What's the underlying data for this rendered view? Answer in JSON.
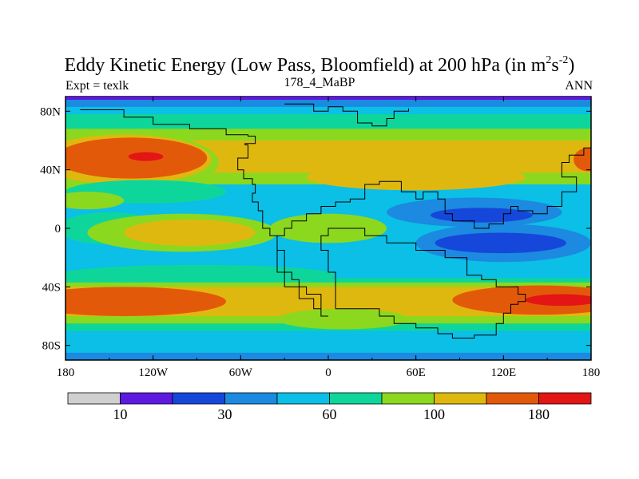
{
  "chart_data": {
    "type": "heatmap",
    "title": {
      "main": "Eddy Kinetic Energy (Low Pass, Bloomfield) at 200 hPa (in m",
      "sup1": "2",
      "mid": "s",
      "sup2": "-2",
      "end": ")"
    },
    "left_string": "Expt = texlk",
    "center_string": "178_4_MaBP",
    "right_string": "ANN",
    "x_range": [
      -180,
      180
    ],
    "y_range": [
      -90,
      90
    ],
    "x_ticks": [
      {
        "value": -180,
        "label": "180"
      },
      {
        "value": -120,
        "label": "120W"
      },
      {
        "value": -60,
        "label": "60W"
      },
      {
        "value": 0,
        "label": "0"
      },
      {
        "value": 60,
        "label": "60E"
      },
      {
        "value": 120,
        "label": "120E"
      },
      {
        "value": 180,
        "label": "180"
      }
    ],
    "y_ticks": [
      {
        "value": 80,
        "label": "80N"
      },
      {
        "value": 40,
        "label": "40N"
      },
      {
        "value": 0,
        "label": "0"
      },
      {
        "value": -40,
        "label": "40S"
      },
      {
        "value": -80,
        "label": "80S"
      }
    ],
    "colorbar": {
      "colors": [
        "#d0d0d0",
        "#5e19e0",
        "#1548da",
        "#1b8ae0",
        "#0bbfe6",
        "#0ed69b",
        "#8bd81f",
        "#dfb80f",
        "#e3590a",
        "#e31515"
      ],
      "labels": [
        {
          "after_box": 1,
          "label": "10"
        },
        {
          "after_box": 3,
          "label": "30"
        },
        {
          "after_box": 5,
          "label": "60"
        },
        {
          "after_box": 7,
          "label": "100"
        },
        {
          "after_box": 9,
          "label": "180"
        }
      ]
    },
    "background_color": "#0bbfe6",
    "field_regions": [
      {
        "type": "band",
        "lat_top": 90,
        "lat_bottom": 83,
        "color": "#1b8ae0"
      },
      {
        "type": "band",
        "lat_top": 78,
        "lat_bottom": 65,
        "color": "#0ed69b"
      },
      {
        "type": "band",
        "lat_top": 68,
        "lat_bottom": 30,
        "color": "#8bd81f"
      },
      {
        "type": "band",
        "lat_top": 60,
        "lat_bottom": 38,
        "color": "#dfb80f"
      },
      {
        "type": "blob",
        "lon": -150,
        "lat": 45,
        "rlon": 75,
        "rlat": 22,
        "color": "#8bd81f"
      },
      {
        "type": "blob",
        "lon": -140,
        "lat": 47,
        "rlon": 60,
        "rlat": 17,
        "color": "#dfb80f"
      },
      {
        "type": "blob",
        "lon": -135,
        "lat": 48,
        "rlon": 52,
        "rlat": 14,
        "color": "#e3590a"
      },
      {
        "type": "blob",
        "lon": -125,
        "lat": 49,
        "rlon": 12,
        "rlat": 3,
        "color": "#e31515"
      },
      {
        "type": "blob",
        "lon": 178,
        "lat": 47,
        "rlon": 10,
        "rlat": 8,
        "color": "#e3590a"
      },
      {
        "type": "blob",
        "lon": -5,
        "lat": 49,
        "rlon": 60,
        "rlat": 9,
        "color": "#dfb80f"
      },
      {
        "type": "blob",
        "lon": -125,
        "lat": 25,
        "rlon": 55,
        "rlat": 8,
        "color": "#0ed69b"
      },
      {
        "type": "blob",
        "lon": 60,
        "lat": 35,
        "rlon": 75,
        "rlat": 9,
        "color": "#dfb80f"
      },
      {
        "type": "blob",
        "lon": -165,
        "lat": 19,
        "rlon": 25,
        "rlat": 6,
        "color": "#8bd81f"
      },
      {
        "type": "blob",
        "lon": 100,
        "lat": 11,
        "rlon": 60,
        "rlat": 10,
        "color": "#1b8ae0"
      },
      {
        "type": "blob",
        "lon": 105,
        "lat": 9,
        "rlon": 35,
        "rlat": 5,
        "color": "#1548da"
      },
      {
        "type": "blob",
        "lon": -150,
        "lat": 0,
        "rlon": 35,
        "rlat": 11,
        "color": "#0ed69b"
      },
      {
        "type": "blob",
        "lon": -100,
        "lat": -3,
        "rlon": 65,
        "rlat": 13,
        "color": "#8bd81f"
      },
      {
        "type": "blob",
        "lon": -95,
        "lat": -3,
        "rlon": 45,
        "rlat": 9,
        "color": "#dfb80f"
      },
      {
        "type": "blob",
        "lon": 0,
        "lat": 0,
        "rlon": 40,
        "rlat": 10,
        "color": "#8bd81f"
      },
      {
        "type": "blob",
        "lon": 120,
        "lat": -10,
        "rlon": 60,
        "rlat": 13,
        "color": "#1b8ae0"
      },
      {
        "type": "blob",
        "lon": 118,
        "lat": -10,
        "rlon": 45,
        "rlat": 7,
        "color": "#1548da"
      },
      {
        "type": "blob",
        "lon": -90,
        "lat": -32,
        "rlon": 95,
        "rlat": 7,
        "color": "#0ed69b"
      },
      {
        "type": "band",
        "lat_top": -34,
        "lat_bottom": -72,
        "color": "#0ed69b"
      },
      {
        "type": "band",
        "lat_top": -37,
        "lat_bottom": -65,
        "color": "#8bd81f"
      },
      {
        "type": "band",
        "lat_top": -40,
        "lat_bottom": -60,
        "color": "#dfb80f"
      },
      {
        "type": "blob",
        "lon": -140,
        "lat": -50,
        "rlon": 70,
        "rlat": 10,
        "color": "#e3590a"
      },
      {
        "type": "blob",
        "lon": 145,
        "lat": -49,
        "rlon": 60,
        "rlat": 10,
        "color": "#e3590a"
      },
      {
        "type": "blob",
        "lon": 160,
        "lat": -49,
        "rlon": 25,
        "rlat": 4,
        "color": "#e31515"
      },
      {
        "type": "blob",
        "lon": 10,
        "lat": -62,
        "rlon": 45,
        "rlat": 7,
        "color": "#8bd81f"
      },
      {
        "type": "band",
        "lat_top": -70,
        "lat_bottom": -90,
        "color": "#0bbfe6"
      },
      {
        "type": "band",
        "lat_top": -85,
        "lat_bottom": -90,
        "color": "#1b8ae0"
      }
    ],
    "outline": [
      [
        -170,
        81
      ],
      [
        -145,
        81
      ],
      [
        -140,
        76
      ],
      [
        -125,
        76
      ],
      [
        -120,
        71
      ],
      [
        -110,
        71
      ],
      [
        -95,
        68
      ],
      [
        -83,
        68
      ],
      [
        -70,
        64
      ],
      [
        -55,
        63
      ],
      [
        -50,
        58
      ],
      [
        -57,
        57
      ],
      [
        -55,
        48
      ],
      [
        -62,
        40
      ],
      [
        -58,
        34
      ],
      [
        -52,
        30
      ],
      [
        -50,
        24
      ],
      [
        -52,
        18
      ],
      [
        -48,
        12
      ],
      [
        -45,
        5
      ],
      [
        -45,
        0
      ],
      [
        -40,
        -5
      ],
      [
        -35,
        -20
      ],
      [
        -35,
        -30
      ],
      [
        -30,
        -40
      ],
      [
        -20,
        -48
      ],
      [
        -10,
        -55
      ],
      [
        -5,
        -60
      ],
      [
        0,
        -60
      ],
      [
        -5,
        -55
      ],
      [
        -5,
        -45
      ],
      [
        -15,
        -40
      ],
      [
        -20,
        -35
      ],
      [
        -25,
        -30
      ],
      [
        -30,
        -15
      ],
      [
        -35,
        -5
      ],
      [
        -30,
        0
      ],
      [
        -25,
        5
      ],
      [
        -15,
        10
      ],
      [
        -5,
        15
      ],
      [
        5,
        18
      ],
      [
        15,
        20
      ],
      [
        25,
        30
      ],
      [
        35,
        32
      ],
      [
        50,
        25
      ],
      [
        60,
        20
      ],
      [
        65,
        25
      ],
      [
        75,
        20
      ],
      [
        80,
        10
      ],
      [
        85,
        5
      ],
      [
        95,
        5
      ],
      [
        100,
        0
      ],
      [
        110,
        3
      ],
      [
        120,
        10
      ],
      [
        125,
        15
      ],
      [
        130,
        12
      ],
      [
        140,
        10
      ],
      [
        150,
        15
      ],
      [
        160,
        25
      ],
      [
        170,
        35
      ],
      [
        160,
        45
      ],
      [
        165,
        50
      ],
      [
        175,
        55
      ],
      [
        180,
        60
      ]
    ],
    "outline_2": [
      [
        -30,
        85
      ],
      [
        -20,
        85
      ],
      [
        -10,
        80
      ],
      [
        0,
        83
      ],
      [
        10,
        80
      ],
      [
        20,
        72
      ],
      [
        30,
        70
      ],
      [
        40,
        75
      ],
      [
        45,
        80
      ],
      [
        55,
        82
      ]
    ],
    "outline_3": [
      [
        5,
        -55
      ],
      [
        30,
        -55
      ],
      [
        35,
        -60
      ],
      [
        45,
        -65
      ],
      [
        60,
        -68
      ],
      [
        75,
        -72
      ],
      [
        85,
        -75
      ],
      [
        100,
        -73
      ],
      [
        115,
        -65
      ],
      [
        120,
        -58
      ],
      [
        125,
        -52
      ],
      [
        130,
        -50
      ],
      [
        135,
        -45
      ],
      [
        130,
        -40
      ],
      [
        115,
        -35
      ],
      [
        105,
        -32
      ],
      [
        95,
        -20
      ],
      [
        80,
        -15
      ],
      [
        60,
        -10
      ],
      [
        40,
        -5
      ],
      [
        25,
        0
      ],
      [
        10,
        0
      ],
      [
        0,
        -5
      ],
      [
        -5,
        -15
      ],
      [
        0,
        -30
      ],
      [
        5,
        -45
      ],
      [
        5,
        -55
      ]
    ]
  }
}
